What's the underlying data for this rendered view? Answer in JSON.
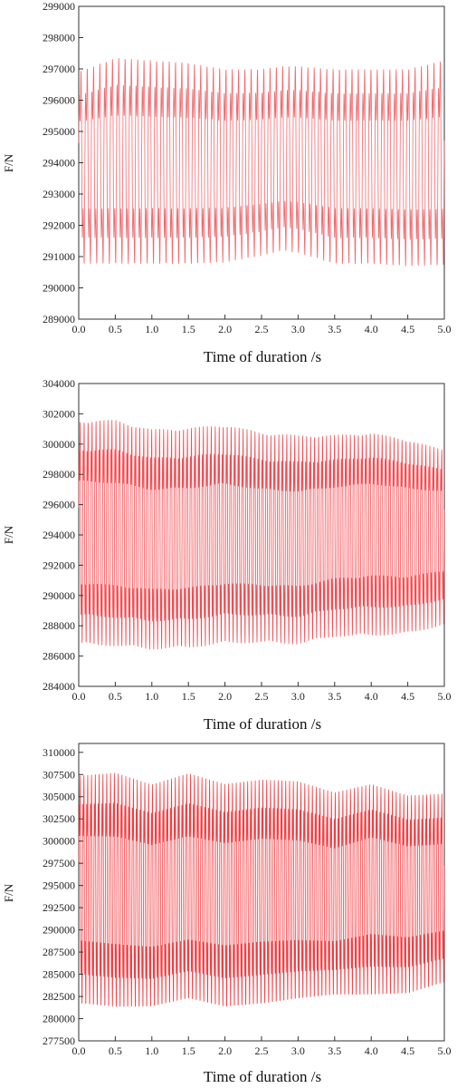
{
  "chart_data": [
    {
      "type": "line",
      "xlabel": "Time of duration /s",
      "ylabel": "F/N",
      "xlim": [
        0.0,
        5.0
      ],
      "ylim": [
        289000,
        299000
      ],
      "xticks": [
        "0.0",
        "0.5",
        "1.0",
        "1.5",
        "2.0",
        "2.5",
        "3.0",
        "3.5",
        "4.0",
        "4.5",
        "5.0"
      ],
      "yticks": [
        "289000",
        "290000",
        "291000",
        "292000",
        "293000",
        "294000",
        "295000",
        "296000",
        "297000",
        "298000",
        "299000"
      ],
      "line_color": "#f05a5f",
      "grid": false,
      "series": [
        {
          "x": [
            0.0,
            0.5,
            1.0,
            1.5,
            2.0,
            2.5,
            2.8,
            3.0,
            3.5,
            4.0,
            4.5,
            5.0
          ],
          "upper": [
            297600,
            298150,
            298050,
            297950,
            297700,
            297700,
            297800,
            297800,
            297700,
            297700,
            297700,
            298050
          ],
          "lower": [
            290000,
            290000,
            290000,
            290000,
            290050,
            290300,
            290500,
            290400,
            290000,
            290000,
            289900,
            289950
          ],
          "center": [
            294000,
            294000,
            294000,
            294000,
            294000,
            294050,
            294100,
            294100,
            294000,
            294000,
            294000,
            294000
          ]
        }
      ]
    },
    {
      "type": "line",
      "xlabel": "Time of duration /s",
      "ylabel": "F/N",
      "xlim": [
        0.0,
        5.0
      ],
      "ylim": [
        284000,
        304000
      ],
      "xticks": [
        "0.0",
        "0.5",
        "1.0",
        "1.5",
        "2.0",
        "2.5",
        "3.0",
        "3.5",
        "4.0",
        "4.5",
        "5.0"
      ],
      "yticks": [
        "284000",
        "286000",
        "288000",
        "290000",
        "292000",
        "294000",
        "296000",
        "298000",
        "300000",
        "302000",
        "304000"
      ],
      "line_color": "#f03a40",
      "grid": false,
      "series": [
        {
          "x": [
            0.0,
            0.5,
            1.0,
            1.5,
            2.0,
            2.5,
            3.0,
            3.5,
            4.0,
            4.5,
            5.0
          ],
          "upper": [
            303300,
            303400,
            302700,
            302800,
            303000,
            302400,
            302200,
            302100,
            302200,
            301700,
            300800
          ],
          "lower": [
            285000,
            284900,
            284700,
            284800,
            285100,
            285200,
            285100,
            285600,
            285600,
            285800,
            286500
          ],
          "center": [
            294200,
            294000,
            293700,
            293800,
            294100,
            293900,
            293800,
            294300,
            294600,
            294400,
            294600
          ]
        }
      ]
    },
    {
      "type": "line",
      "xlabel": "Time of duration /s",
      "ylabel": "F/N",
      "xlim": [
        0.0,
        5.0
      ],
      "ylim": [
        277500,
        311000
      ],
      "xticks": [
        "0.0",
        "0.5",
        "1.0",
        "1.5",
        "2.0",
        "2.5",
        "3.0",
        "3.5",
        "4.0",
        "4.5",
        "5.0"
      ],
      "yticks": [
        "277500",
        "280000",
        "282500",
        "285000",
        "287500",
        "290000",
        "292500",
        "295000",
        "297500",
        "300000",
        "302500",
        "305000",
        "307500",
        "310000"
      ],
      "line_color": "#ee2a30",
      "grid": false,
      "series": [
        {
          "x": [
            0.0,
            0.5,
            1.0,
            1.5,
            2.0,
            2.5,
            3.0,
            3.5,
            4.0,
            4.5,
            5.0
          ],
          "upper": [
            310300,
            310800,
            309300,
            310700,
            309300,
            309800,
            309600,
            308200,
            309000,
            307600,
            307800
          ],
          "lower": [
            278200,
            277800,
            278000,
            279000,
            277900,
            278200,
            279000,
            279700,
            279300,
            279700,
            281200
          ],
          "center": [
            295000,
            294600,
            294000,
            294700,
            294300,
            294800,
            294600,
            294000,
            295500,
            294700,
            295000
          ]
        }
      ]
    }
  ]
}
